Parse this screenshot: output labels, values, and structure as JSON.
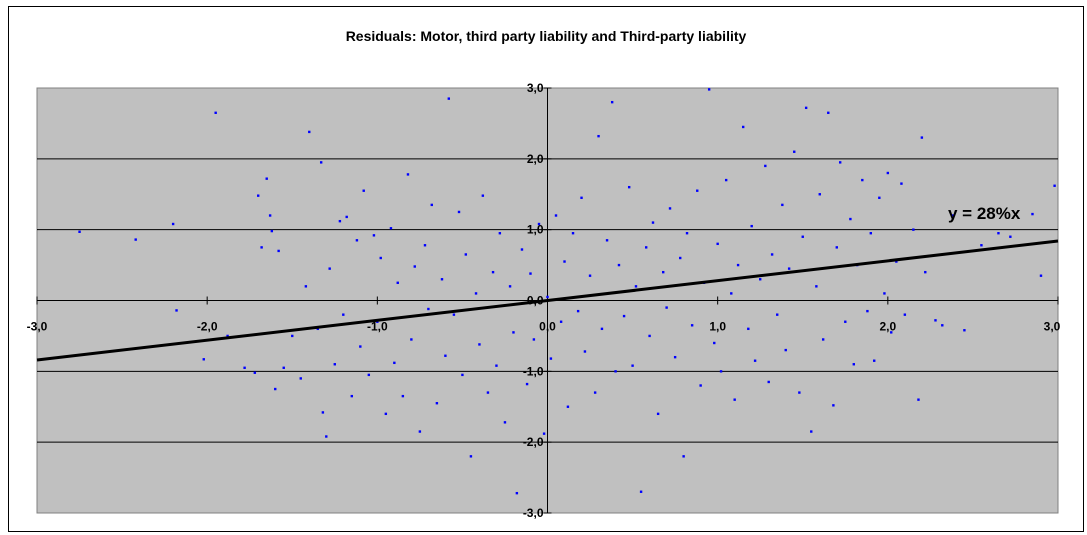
{
  "chart_data": {
    "type": "scatter",
    "title": "Residuals: Motor, third party liability and Third-party liability",
    "xlim": [
      -3,
      3
    ],
    "ylim": [
      -3,
      3
    ],
    "x_ticks": [
      "-3,0",
      "-2,0",
      "-1,0",
      "0,0",
      "1,0",
      "2,0",
      "3,0"
    ],
    "y_ticks": [
      "-3,0",
      "-2,0",
      "-1,0",
      "0,0",
      "1,0",
      "2,0",
      "3,0"
    ],
    "grid": true,
    "background_color": "#c0c0c0",
    "series": [
      {
        "type": "scatter",
        "color": "#0000ff",
        "points": [
          [
            -2.75,
            0.97
          ],
          [
            -2.42,
            0.86
          ],
          [
            -2.2,
            1.08
          ],
          [
            -2.18,
            -0.14
          ],
          [
            -2.02,
            -0.83
          ],
          [
            -1.95,
            2.65
          ],
          [
            -1.88,
            -0.5
          ],
          [
            -1.78,
            -0.95
          ],
          [
            -1.72,
            -1.02
          ],
          [
            -1.7,
            1.48
          ],
          [
            -1.68,
            0.75
          ],
          [
            -1.65,
            1.72
          ],
          [
            -1.63,
            1.2
          ],
          [
            -1.62,
            0.98
          ],
          [
            -1.6,
            -1.25
          ],
          [
            -1.58,
            0.7
          ],
          [
            -1.55,
            -0.95
          ],
          [
            -1.5,
            -0.5
          ],
          [
            -1.45,
            -1.1
          ],
          [
            -1.42,
            0.2
          ],
          [
            -1.4,
            2.38
          ],
          [
            -1.35,
            -0.4
          ],
          [
            -1.33,
            1.95
          ],
          [
            -1.32,
            -1.58
          ],
          [
            -1.3,
            -1.92
          ],
          [
            -1.28,
            0.45
          ],
          [
            -1.25,
            -0.9
          ],
          [
            -1.22,
            1.12
          ],
          [
            -1.2,
            -0.2
          ],
          [
            -1.18,
            1.18
          ],
          [
            -1.15,
            -1.35
          ],
          [
            -1.12,
            0.85
          ],
          [
            -1.1,
            -0.65
          ],
          [
            -1.08,
            1.55
          ],
          [
            -1.05,
            -1.05
          ],
          [
            -1.02,
            0.92
          ],
          [
            -1.0,
            -0.3
          ],
          [
            -0.98,
            0.6
          ],
          [
            -0.95,
            -1.6
          ],
          [
            -0.92,
            1.02
          ],
          [
            -0.9,
            -0.88
          ],
          [
            -0.88,
            0.25
          ],
          [
            -0.85,
            -1.35
          ],
          [
            -0.82,
            1.78
          ],
          [
            -0.8,
            -0.55
          ],
          [
            -0.78,
            0.48
          ],
          [
            -0.75,
            -1.85
          ],
          [
            -0.72,
            0.78
          ],
          [
            -0.7,
            -0.12
          ],
          [
            -0.68,
            1.35
          ],
          [
            -0.65,
            -1.45
          ],
          [
            -0.62,
            0.3
          ],
          [
            -0.6,
            -0.78
          ],
          [
            -0.58,
            2.85
          ],
          [
            -0.55,
            -0.2
          ],
          [
            -0.52,
            1.25
          ],
          [
            -0.5,
            -1.05
          ],
          [
            -0.48,
            0.65
          ],
          [
            -0.45,
            -2.2
          ],
          [
            -0.42,
            0.1
          ],
          [
            -0.4,
            -0.62
          ],
          [
            -0.38,
            1.48
          ],
          [
            -0.35,
            -1.3
          ],
          [
            -0.32,
            0.4
          ],
          [
            -0.3,
            -0.92
          ],
          [
            -0.28,
            0.95
          ],
          [
            -0.25,
            -1.72
          ],
          [
            -0.22,
            0.2
          ],
          [
            -0.2,
            -0.45
          ],
          [
            -0.18,
            -2.72
          ],
          [
            -0.15,
            0.72
          ],
          [
            -0.12,
            -1.18
          ],
          [
            -0.1,
            0.38
          ],
          [
            -0.08,
            -0.55
          ],
          [
            -0.05,
            1.08
          ],
          [
            -0.02,
            -1.88
          ],
          [
            0.0,
            0.05
          ],
          [
            0.02,
            -0.82
          ],
          [
            0.05,
            1.2
          ],
          [
            0.08,
            -0.3
          ],
          [
            0.1,
            0.55
          ],
          [
            0.12,
            -1.5
          ],
          [
            0.15,
            0.95
          ],
          [
            0.18,
            -0.15
          ],
          [
            0.2,
            1.45
          ],
          [
            0.22,
            -0.72
          ],
          [
            0.25,
            0.35
          ],
          [
            0.28,
            -1.3
          ],
          [
            0.3,
            2.32
          ],
          [
            0.32,
            -0.4
          ],
          [
            0.35,
            0.85
          ],
          [
            0.38,
            2.8
          ],
          [
            0.4,
            -1.0
          ],
          [
            0.42,
            0.5
          ],
          [
            0.45,
            -0.22
          ],
          [
            0.48,
            1.6
          ],
          [
            0.5,
            -0.92
          ],
          [
            0.52,
            0.2
          ],
          [
            0.55,
            -2.7
          ],
          [
            0.58,
            0.75
          ],
          [
            0.6,
            -0.5
          ],
          [
            0.62,
            1.1
          ],
          [
            0.65,
            -1.6
          ],
          [
            0.68,
            0.4
          ],
          [
            0.7,
            -0.1
          ],
          [
            0.72,
            1.3
          ],
          [
            0.75,
            -0.8
          ],
          [
            0.78,
            0.6
          ],
          [
            0.8,
            -2.2
          ],
          [
            0.82,
            0.95
          ],
          [
            0.85,
            -0.35
          ],
          [
            0.88,
            1.55
          ],
          [
            0.9,
            -1.2
          ],
          [
            0.92,
            0.25
          ],
          [
            0.95,
            2.98
          ],
          [
            0.98,
            -0.6
          ],
          [
            1.0,
            0.8
          ],
          [
            1.02,
            -1.0
          ],
          [
            1.05,
            1.7
          ],
          [
            1.08,
            0.1
          ],
          [
            1.1,
            -1.4
          ],
          [
            1.12,
            0.5
          ],
          [
            1.15,
            2.45
          ],
          [
            1.18,
            -0.4
          ],
          [
            1.2,
            1.05
          ],
          [
            1.22,
            -0.85
          ],
          [
            1.25,
            0.3
          ],
          [
            1.28,
            1.9
          ],
          [
            1.3,
            -1.15
          ],
          [
            1.32,
            0.65
          ],
          [
            1.35,
            -0.2
          ],
          [
            1.38,
            1.35
          ],
          [
            1.4,
            -0.7
          ],
          [
            1.42,
            0.45
          ],
          [
            1.45,
            2.1
          ],
          [
            1.48,
            -1.3
          ],
          [
            1.5,
            0.9
          ],
          [
            1.52,
            2.72
          ],
          [
            1.55,
            -1.85
          ],
          [
            1.58,
            0.2
          ],
          [
            1.6,
            1.5
          ],
          [
            1.62,
            -0.55
          ],
          [
            1.65,
            2.65
          ],
          [
            1.68,
            -1.48
          ],
          [
            1.7,
            0.75
          ],
          [
            1.72,
            1.95
          ],
          [
            1.75,
            -0.3
          ],
          [
            1.78,
            1.15
          ],
          [
            1.8,
            -0.9
          ],
          [
            1.82,
            0.5
          ],
          [
            1.85,
            1.7
          ],
          [
            1.88,
            -0.15
          ],
          [
            1.9,
            0.95
          ],
          [
            1.92,
            -0.85
          ],
          [
            1.95,
            1.45
          ],
          [
            1.98,
            0.1
          ],
          [
            2.0,
            1.8
          ],
          [
            2.02,
            -0.45
          ],
          [
            2.05,
            0.55
          ],
          [
            2.08,
            1.65
          ],
          [
            2.1,
            -0.2
          ],
          [
            2.15,
            1.0
          ],
          [
            2.18,
            -1.4
          ],
          [
            2.2,
            2.3
          ],
          [
            2.22,
            0.4
          ],
          [
            2.28,
            -0.28
          ],
          [
            2.32,
            -0.35
          ],
          [
            2.38,
            1.2
          ],
          [
            2.45,
            -0.42
          ],
          [
            2.55,
            0.78
          ],
          [
            2.65,
            0.95
          ],
          [
            2.72,
            0.9
          ],
          [
            2.85,
            1.22
          ],
          [
            2.9,
            0.35
          ],
          [
            2.98,
            1.62
          ]
        ]
      },
      {
        "type": "line",
        "name": "y = 28%x",
        "color": "#000000",
        "slope": 0.28
      }
    ]
  }
}
